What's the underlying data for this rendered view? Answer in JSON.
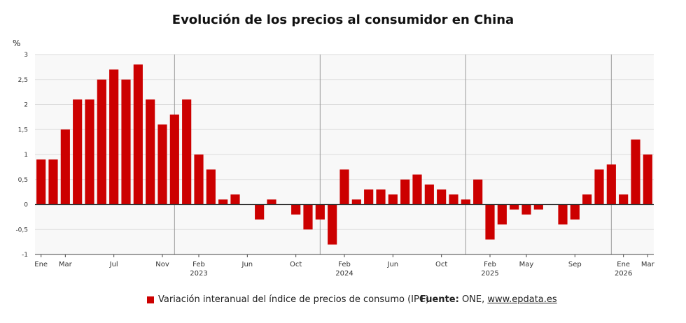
{
  "colors": {
    "bar": "#cc0000",
    "plot_bg": "#f8f8f8",
    "grid": "#dddddd",
    "zero": "#333333",
    "year_line": "#999999"
  },
  "chart_data": {
    "type": "bar",
    "title": "Evolución de los precios al consumidor en China",
    "ylabel": "%",
    "ylim": [
      -1,
      3
    ],
    "yticks": [
      3,
      2.5,
      2,
      1.5,
      1,
      0.5,
      0,
      -0.5,
      -1
    ],
    "ytick_labels": [
      "3",
      "2,5",
      "2",
      "1,5",
      "1",
      "0,5",
      "0",
      "-0,5",
      "-1"
    ],
    "grid": true,
    "legend_position": "bottom",
    "categories": [
      "Ene 2022",
      "Feb 2022",
      "Mar 2022",
      "Abr 2022",
      "May 2022",
      "Jun 2022",
      "Jul 2022",
      "Ago 2022",
      "Sep 2022",
      "Oct 2022",
      "Nov 2022",
      "Dic 2022",
      "Ene 2023",
      "Feb 2023",
      "Mar 2023",
      "Abr 2023",
      "May 2023",
      "Jun 2023",
      "Jul 2023",
      "Ago 2023",
      "Sep 2023",
      "Oct 2023",
      "Nov 2023",
      "Dic 2023",
      "Ene 2024",
      "Feb 2024",
      "Mar 2024",
      "Abr 2024",
      "May 2024",
      "Jun 2024",
      "Jul 2024",
      "Ago 2024",
      "Sep 2024",
      "Oct 2024",
      "Nov 2024",
      "Dic 2024",
      "Ene 2025",
      "Feb 2025",
      "Mar 2025",
      "Abr 2025",
      "May 2025",
      "Jun 2025",
      "Jul 2025",
      "Ago 2025",
      "Sep 2025",
      "Oct 2025",
      "Nov 2025",
      "Dic 2025",
      "Ene 2026",
      "Feb 2026",
      "Mar 2026"
    ],
    "series": [
      {
        "name": "Variación interanual del índice de precios de consumo (IPC)",
        "values": [
          0.9,
          0.9,
          1.5,
          2.1,
          2.1,
          2.5,
          2.7,
          2.5,
          2.8,
          2.1,
          1.6,
          1.8,
          2.1,
          1.0,
          0.7,
          0.1,
          0.2,
          0.0,
          -0.3,
          0.1,
          0.0,
          -0.2,
          -0.5,
          -0.3,
          -0.8,
          0.7,
          0.1,
          0.3,
          0.3,
          0.2,
          0.5,
          0.6,
          0.4,
          0.3,
          0.2,
          0.1,
          0.5,
          -0.7,
          -0.4,
          -0.1,
          -0.2,
          -0.1,
          0.0,
          -0.4,
          -0.3,
          0.2,
          0.7,
          0.8,
          0.2,
          1.3,
          1.0
        ]
      }
    ],
    "x_tick_labels": [
      {
        "index": 0,
        "label": "Ene"
      },
      {
        "index": 2,
        "label": "Mar"
      },
      {
        "index": 6,
        "label": "Jul"
      },
      {
        "index": 10,
        "label": "Nov"
      },
      {
        "index": 13,
        "label": "Feb",
        "year": "2023"
      },
      {
        "index": 17,
        "label": "Jun"
      },
      {
        "index": 21,
        "label": "Oct"
      },
      {
        "index": 25,
        "label": "Feb",
        "year": "2024"
      },
      {
        "index": 29,
        "label": "Jun"
      },
      {
        "index": 33,
        "label": "Oct"
      },
      {
        "index": 37,
        "label": "Feb",
        "year": "2025"
      },
      {
        "index": 40,
        "label": "May"
      },
      {
        "index": 44,
        "label": "Sep"
      },
      {
        "index": 48,
        "label": "Ene",
        "year": "2026"
      },
      {
        "index": 50,
        "label": "Mar"
      }
    ],
    "year_separators_after_index": [
      12,
      24,
      36,
      48
    ]
  },
  "legend": {
    "label": "Variación interanual del índice de precios de consumo (IPC)"
  },
  "source": {
    "label": "Fuente:",
    "text": "ONE,",
    "link": "www.epdata.es"
  }
}
